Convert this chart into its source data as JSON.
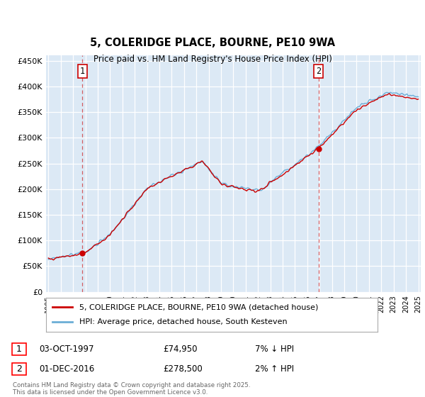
{
  "title": "5, COLERIDGE PLACE, BOURNE, PE10 9WA",
  "subtitle": "Price paid vs. HM Land Registry's House Price Index (HPI)",
  "plot_bg_color": "#dce9f5",
  "ylim": [
    0,
    460000
  ],
  "yticks": [
    0,
    50000,
    100000,
    150000,
    200000,
    250000,
    300000,
    350000,
    400000,
    450000
  ],
  "ytick_labels": [
    "£0",
    "£50K",
    "£100K",
    "£150K",
    "£200K",
    "£250K",
    "£300K",
    "£350K",
    "£400K",
    "£450K"
  ],
  "year_start": 1995,
  "year_end": 2025,
  "sale1_t": 2.75,
  "sale1_price": 74950,
  "sale1_year": "03-OCT-1997",
  "sale1_price_str": "£74,950",
  "sale1_hpi_str": "7% ↓ HPI",
  "sale2_t": 21.9,
  "sale2_price": 278500,
  "sale2_year": "01-DEC-2016",
  "sale2_price_str": "£278,500",
  "sale2_hpi_str": "2% ↑ HPI",
  "hpi_line_color": "#6baed6",
  "sale_line_color": "#cc0000",
  "marker_color": "#cc0000",
  "vline_color": "#cc0000",
  "label_box_color": "#cc0000",
  "legend_label_sale": "5, COLERIDGE PLACE, BOURNE, PE10 9WA (detached house)",
  "legend_label_hpi": "HPI: Average price, detached house, South Kesteven",
  "footer": "Contains HM Land Registry data © Crown copyright and database right 2025.\nThis data is licensed under the Open Government Licence v3.0."
}
